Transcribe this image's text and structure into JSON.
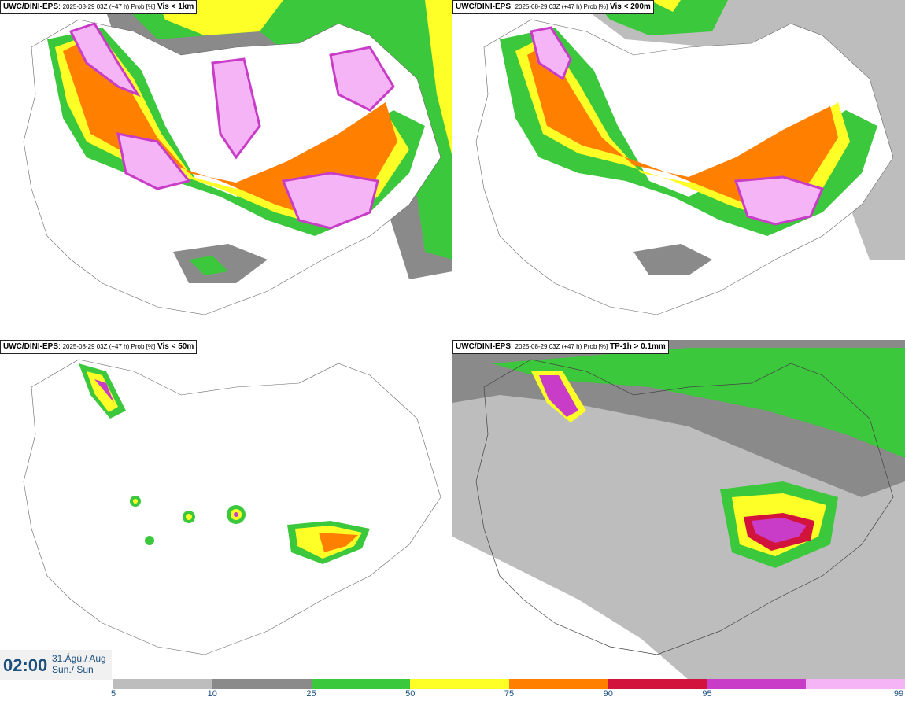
{
  "panels": [
    {
      "model": "UWC/DINI-EPS",
      "meta": "2025-08-29 03Z (+47 h) Prob [%]",
      "variable": "Vis < 1km"
    },
    {
      "model": "UWC/DINI-EPS",
      "meta": "2025-08-29 03Z (+47 h) Prob [%]",
      "variable": "Vis < 200m"
    },
    {
      "model": "UWC/DINI-EPS",
      "meta": "2025-08-29 03Z (+47 h) Prob [%]",
      "variable": "Vis < 50m"
    },
    {
      "model": "UWC/DINI-EPS",
      "meta": "2025-08-29 03Z (+47 h) Prob [%]",
      "variable": "TP-1h > 0.1mm"
    }
  ],
  "valid_time": {
    "time": "02:00",
    "date_line1": "31.Ágú./ Aug",
    "date_line2": "Sun./ Sun"
  },
  "colorbar": {
    "ticks": [
      "5",
      "10",
      "25",
      "50",
      "75",
      "90",
      "95",
      "99"
    ],
    "colors": [
      "#bdbdbd",
      "#8a8a8a",
      "#3cc83c",
      "#ffff28",
      "#ff7f00",
      "#d2143c",
      "#c83cc8",
      "#f5b4f5"
    ]
  }
}
